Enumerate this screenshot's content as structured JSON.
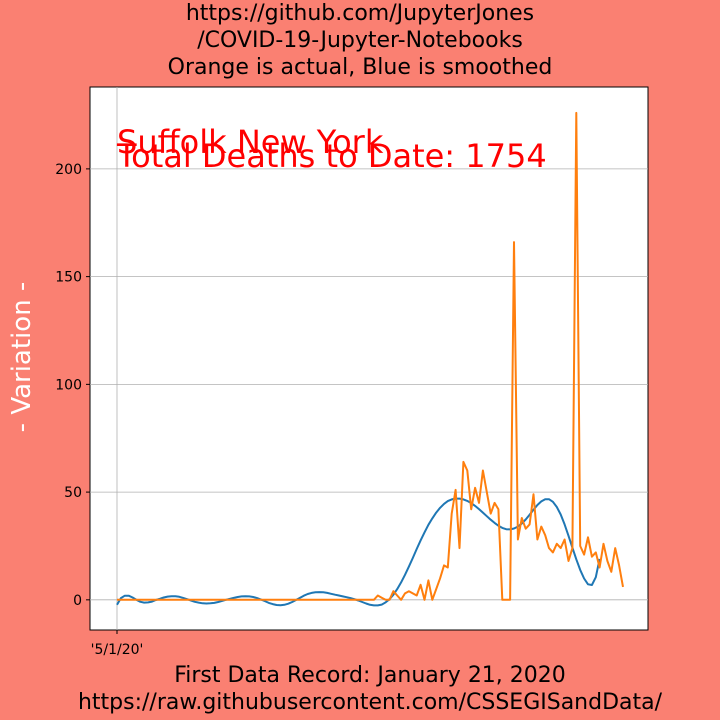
{
  "header": {
    "line1": "https://github.com/JupyterJones",
    "line2": "/COVID-19-Jupyter-Notebooks",
    "line3": "Orange is actual, Blue is smoothed"
  },
  "footer": {
    "line1": "First Data Record: January 21, 2020",
    "line2": "https://raw.githubusercontent.com/CSSEGISandData/"
  },
  "colors": {
    "background": "#fa8072",
    "actual": "#ff7f0e",
    "smoothed": "#1f77b4",
    "annotation": "#ff0000"
  },
  "chart_data": {
    "type": "line",
    "title": "Orange is actual, Blue is smoothed",
    "xlabel": "",
    "ylabel": "- Variation -",
    "ylim": [
      -14,
      238
    ],
    "yticks": [
      0,
      50,
      100,
      150,
      200
    ],
    "xtick_labels": [
      "'5/1/20'"
    ],
    "grid": true,
    "annotations": [
      "Suffolk New York",
      "Total Deaths to Date: 1754"
    ],
    "series": [
      {
        "name": "actual",
        "color": "#ff7f0e",
        "values": [
          0,
          0,
          0,
          0,
          0,
          0,
          0,
          0,
          0,
          0,
          0,
          0,
          0,
          0,
          0,
          0,
          0,
          0,
          0,
          0,
          0,
          0,
          0,
          0,
          0,
          0,
          0,
          0,
          0,
          0,
          0,
          0,
          0,
          0,
          0,
          0,
          0,
          0,
          0,
          0,
          0,
          0,
          0,
          0,
          0,
          0,
          0,
          0,
          0,
          0,
          0,
          0,
          0,
          0,
          0,
          0,
          0,
          0,
          0,
          0,
          0,
          0,
          0,
          0,
          0,
          0,
          0,
          2,
          1,
          0,
          0,
          4,
          2,
          0,
          3,
          4,
          3,
          2,
          7,
          0,
          9,
          0,
          5,
          10,
          16,
          15,
          40,
          51,
          24,
          64,
          60,
          42,
          52,
          45,
          60,
          50,
          40,
          45,
          42,
          0,
          0,
          0,
          166,
          28,
          38,
          33,
          35,
          49,
          28,
          34,
          30,
          24,
          22,
          26,
          24,
          28,
          18,
          24,
          226,
          25,
          21,
          29,
          20,
          22,
          15,
          26,
          18,
          13,
          24,
          16,
          6
        ],
        "x_start_label": "'5/1/20'"
      },
      {
        "name": "smoothed",
        "color": "#1f77b4",
        "values": [
          -2.3,
          0.8,
          1.9,
          1.9,
          1.1,
          0.0,
          -0.9,
          -1.3,
          -1.2,
          -0.8,
          -0.1,
          0.5,
          1.1,
          1.5,
          1.7,
          1.7,
          1.4,
          0.9,
          0.3,
          -0.3,
          -0.9,
          -1.3,
          -1.6,
          -1.7,
          -1.6,
          -1.4,
          -1.0,
          -0.5,
          0.0,
          0.5,
          0.9,
          1.3,
          1.6,
          1.7,
          1.6,
          1.3,
          0.8,
          0.1,
          -0.6,
          -1.4,
          -2.0,
          -2.4,
          -2.5,
          -2.3,
          -1.8,
          -1.0,
          -0.1,
          0.9,
          1.9,
          2.7,
          3.2,
          3.5,
          3.6,
          3.5,
          3.2,
          2.8,
          2.4,
          2.0,
          1.6,
          1.2,
          0.8,
          0.3,
          -0.3,
          -1.0,
          -1.7,
          -2.3,
          -2.6,
          -2.6,
          -2.2,
          -1.2,
          0.3,
          2.4,
          5.0,
          8.1,
          11.6,
          15.4,
          19.4,
          23.6,
          27.6,
          31.3,
          34.8,
          37.8,
          40.5,
          42.7,
          44.5,
          45.8,
          46.6,
          47.0,
          47.0,
          46.6,
          45.9,
          44.9,
          43.6,
          42.1,
          40.5,
          38.8,
          37.2,
          35.7,
          34.4,
          33.4,
          32.8,
          32.7,
          33.1,
          34.0,
          35.4,
          37.3,
          39.5,
          41.8,
          44.0,
          45.7,
          46.7,
          46.7,
          45.5,
          43.1,
          39.6,
          35.0,
          29.7,
          24.2,
          18.8,
          13.9,
          9.9,
          7.2,
          6.9,
          10.5,
          19.0
        ]
      }
    ]
  }
}
